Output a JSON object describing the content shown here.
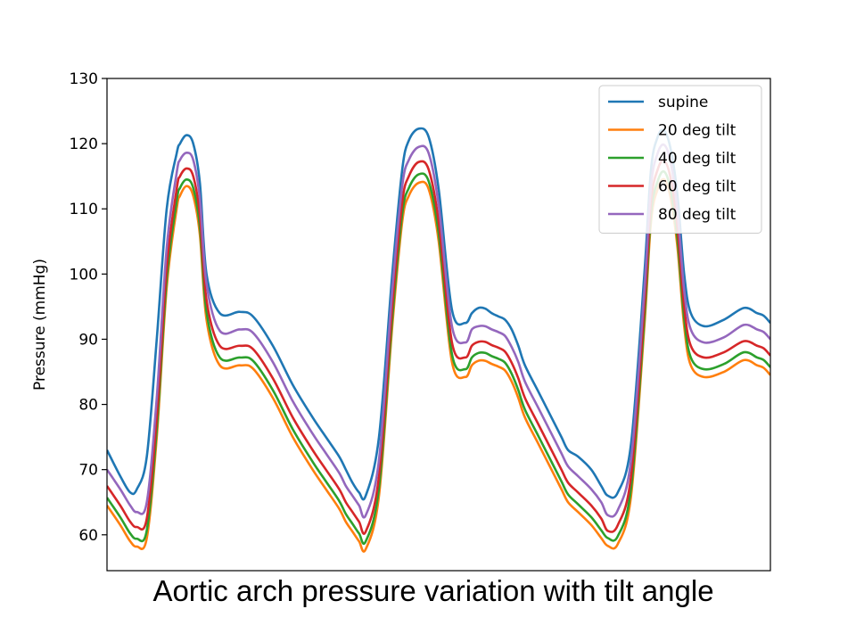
{
  "caption": "Aortic arch pressure variation with tilt angle",
  "chart_data": {
    "type": "line",
    "title": "",
    "xlabel": "",
    "ylabel": "Pressure (mmHg)",
    "xlim": [
      0,
      100
    ],
    "ylim": [
      54.5,
      130
    ],
    "yticks": [
      60,
      70,
      80,
      90,
      100,
      110,
      120,
      130
    ],
    "x_tick_labels_shown": false,
    "legend_position": "upper right",
    "grid": false,
    "series": [
      {
        "name": "supine",
        "color": "#1f77b4",
        "x": [
          0,
          2,
          3.5,
          4.5,
          6,
          7.5,
          9,
          10.5,
          11,
          12,
          13,
          14,
          15,
          17,
          20,
          22,
          25,
          28,
          31,
          33,
          35,
          36,
          37,
          38,
          39,
          41,
          43,
          44.5,
          45.5,
          47,
          48.5,
          50,
          52,
          54,
          55,
          56,
          57,
          58,
          59,
          60,
          61,
          62,
          63,
          65,
          67,
          68.5,
          69.5,
          71,
          73,
          74.5,
          75.5,
          77,
          79,
          81,
          82,
          83,
          84,
          85,
          86,
          87,
          88,
          90,
          93,
          96,
          98,
          99,
          100
        ],
        "y": [
          73,
          69,
          66.5,
          67,
          72,
          90,
          110,
          118.5,
          120,
          121.3,
          120,
          114,
          100,
          94,
          94.2,
          93.5,
          89,
          83,
          78,
          75,
          72,
          70,
          68,
          66.5,
          66,
          75,
          100,
          116,
          120.5,
          122.3,
          121,
          113,
          94.5,
          92.5,
          94,
          94.8,
          94.7,
          94,
          93.5,
          93,
          91.5,
          89,
          86,
          82,
          78,
          75,
          73,
          72,
          70,
          67.5,
          66,
          66.5,
          74,
          100,
          116,
          121,
          122,
          119,
          112,
          100,
          94,
          92,
          93,
          94.8,
          94,
          93.6,
          92.5
        ]
      },
      {
        "name": "20 deg tilt",
        "color": "#ff7f0e",
        "x": [
          0,
          2,
          3.5,
          4.5,
          6,
          7.5,
          9,
          10.5,
          11,
          12,
          13,
          14,
          15,
          17,
          20,
          22,
          25,
          28,
          31,
          33,
          35,
          36,
          37,
          38,
          39,
          41,
          43,
          44.5,
          45.5,
          47,
          48.5,
          50,
          52,
          54,
          55,
          56,
          57,
          58,
          59,
          60,
          61,
          62,
          63,
          65,
          67,
          68.5,
          69.5,
          71,
          73,
          74.5,
          75.5,
          77,
          79,
          81,
          82,
          83,
          84,
          85,
          86,
          87,
          88,
          90,
          93,
          96,
          98,
          99,
          100
        ],
        "y": [
          64.5,
          61.5,
          59,
          58.2,
          59.5,
          75,
          98,
          110,
          112,
          113.5,
          112,
          106,
          93,
          86,
          86,
          85.5,
          81,
          75,
          70,
          67,
          64,
          62,
          60.5,
          59,
          57.8,
          66,
          92,
          108,
          112,
          114,
          113,
          105,
          86.5,
          84.2,
          86,
          86.7,
          86.7,
          86.2,
          85.8,
          85.2,
          83.5,
          81,
          78,
          74,
          70,
          67,
          65,
          63.5,
          61.5,
          59.5,
          58.3,
          58.6,
          66,
          92,
          108,
          113,
          114.5,
          111.5,
          104,
          92,
          86,
          84.2,
          85,
          86.8,
          86,
          85.6,
          84.5
        ]
      },
      {
        "name": "40 deg tilt",
        "color": "#2ca02c",
        "x": [
          0,
          2,
          3.5,
          4.5,
          6,
          7.5,
          9,
          10.5,
          11,
          12,
          13,
          14,
          15,
          17,
          20,
          22,
          25,
          28,
          31,
          33,
          35,
          36,
          37,
          38,
          39,
          41,
          43,
          44.5,
          45.5,
          47,
          48.5,
          50,
          52,
          54,
          55,
          56,
          57,
          58,
          59,
          60,
          61,
          62,
          63,
          65,
          67,
          68.5,
          69.5,
          71,
          73,
          74.5,
          75.5,
          77,
          79,
          81,
          82,
          83,
          84,
          85,
          86,
          87,
          88,
          90,
          93,
          96,
          98,
          99,
          100
        ],
        "y": [
          65.7,
          62.7,
          60.2,
          59.4,
          60.7,
          76.2,
          99.2,
          111.2,
          113.2,
          114.5,
          113.2,
          107.2,
          94.2,
          87.2,
          87.2,
          86.7,
          82.2,
          76.2,
          71.2,
          68.2,
          65.2,
          63.2,
          61.7,
          60.2,
          59,
          67.2,
          93.2,
          109.2,
          113.2,
          115.3,
          114.2,
          106.2,
          87.7,
          85.4,
          87.2,
          87.9,
          87.9,
          87.4,
          87,
          86.4,
          84.7,
          82.2,
          79.2,
          75.2,
          71.2,
          68.2,
          66.2,
          64.7,
          62.7,
          60.7,
          59.5,
          59.8,
          67.2,
          93.2,
          109.2,
          114.2,
          115.7,
          112.7,
          105.2,
          93.2,
          87.2,
          85.4,
          86.2,
          88,
          87.2,
          86.8,
          85.7
        ]
      },
      {
        "name": "60 deg tilt",
        "color": "#d62728",
        "x": [
          0,
          2,
          3.5,
          4.5,
          6,
          7.5,
          9,
          10.5,
          11,
          12,
          13,
          14,
          15,
          17,
          20,
          22,
          25,
          28,
          31,
          33,
          35,
          36,
          37,
          38,
          39,
          41,
          43,
          44.5,
          45.5,
          47,
          48.5,
          50,
          52,
          54,
          55,
          56,
          57,
          58,
          59,
          60,
          61,
          62,
          63,
          65,
          67,
          68.5,
          69.5,
          71,
          73,
          74.5,
          75.5,
          77,
          79,
          81,
          82,
          83,
          84,
          85,
          86,
          87,
          88,
          90,
          93,
          96,
          98,
          99,
          100
        ],
        "y": [
          67.5,
          64.5,
          62,
          61.2,
          62.5,
          78,
          101,
          113,
          115,
          116.2,
          115,
          109,
          96,
          89,
          89,
          88.5,
          84,
          78,
          73,
          70,
          67,
          65,
          63.5,
          62,
          60.5,
          69,
          95,
          111,
          115,
          117.2,
          116,
          108,
          89.5,
          87.2,
          89,
          89.6,
          89.6,
          89.1,
          88.7,
          88.1,
          86.4,
          84,
          81,
          77,
          73,
          70,
          68,
          66.5,
          64.5,
          62.5,
          60.6,
          61.5,
          69,
          95,
          111,
          116,
          117.4,
          114.5,
          107,
          95,
          89,
          87.2,
          88,
          89.7,
          89,
          88.6,
          87.5
        ]
      },
      {
        "name": "80 deg tilt",
        "color": "#9467bd",
        "x": [
          0,
          2,
          3.5,
          4.5,
          6,
          7.5,
          9,
          10.5,
          11,
          12,
          13,
          14,
          15,
          17,
          20,
          22,
          25,
          28,
          31,
          33,
          35,
          36,
          37,
          38,
          39,
          41,
          43,
          44.5,
          45.5,
          47,
          48.5,
          50,
          52,
          54,
          55,
          56,
          57,
          58,
          59,
          60,
          61,
          62,
          63,
          65,
          67,
          68.5,
          69.5,
          71,
          73,
          74.5,
          75.5,
          77,
          79,
          81,
          82,
          83,
          84,
          85,
          86,
          87,
          88,
          90,
          93,
          96,
          98,
          99,
          100
        ],
        "y": [
          70,
          67,
          64.5,
          63.5,
          65,
          81,
          104,
          115.5,
          117.5,
          118.6,
          117.5,
          111.5,
          98.5,
          91.3,
          91.5,
          91,
          86.5,
          80.5,
          75.5,
          72.5,
          69.5,
          67.5,
          66,
          64.5,
          63,
          71.5,
          97.5,
          113.5,
          117.5,
          119.5,
          118.5,
          110.5,
          92,
          89.5,
          91.5,
          92,
          92,
          91.5,
          91.1,
          90.5,
          88.8,
          86.5,
          83.5,
          79.5,
          75.5,
          72.5,
          70.5,
          69,
          67,
          65,
          63,
          63.8,
          71.5,
          97.5,
          113.5,
          118.5,
          119.8,
          117,
          109.5,
          97.5,
          91.5,
          89.5,
          90.3,
          92.2,
          91.5,
          91.1,
          90
        ]
      }
    ]
  }
}
